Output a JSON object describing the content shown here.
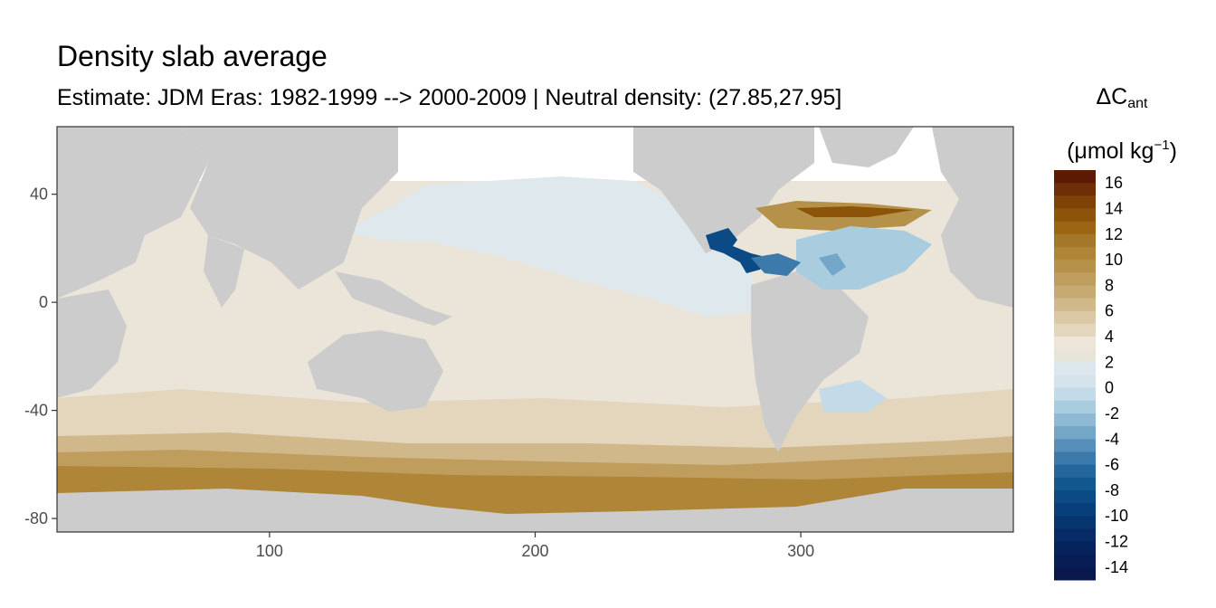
{
  "title": "Density slab average",
  "subtitle": "Estimate: JDM Eras: 1982-1999 --> 2000-2009 | Neutral density: (27.85,27.95]",
  "legend": {
    "title_main": "ΔC",
    "title_sub": "ant",
    "unit_open": "(μmol kg",
    "unit_sup": "−1",
    "unit_close": ")",
    "bins": [
      {
        "label": "16",
        "color": "#5c1a05"
      },
      {
        "label": "",
        "color": "#6e2e07"
      },
      {
        "label": "14",
        "color": "#7e4207"
      },
      {
        "label": "",
        "color": "#8c540b"
      },
      {
        "label": "12",
        "color": "#9a6614"
      },
      {
        "label": "",
        "color": "#a5772a"
      },
      {
        "label": "10",
        "color": "#af8537"
      },
      {
        "label": "",
        "color": "#b69149"
      },
      {
        "label": "8",
        "color": "#bf9d5c"
      },
      {
        "label": "",
        "color": "#c6aa71"
      },
      {
        "label": "6",
        "color": "#d0b88a"
      },
      {
        "label": "",
        "color": "#dbc8a5"
      },
      {
        "label": "4",
        "color": "#e3d6bd"
      },
      {
        "label": "",
        "color": "#ece5d8"
      },
      {
        "label": "2",
        "color": "#e7e4da"
      },
      {
        "label": "",
        "color": "#dde8ee"
      },
      {
        "label": "0",
        "color": "#d4e3ec"
      },
      {
        "label": "",
        "color": "#c3dbe8"
      },
      {
        "label": "-2",
        "color": "#aaccdf"
      },
      {
        "label": "",
        "color": "#8fb9d4"
      },
      {
        "label": "-4",
        "color": "#74a6c8"
      },
      {
        "label": "",
        "color": "#5690ba"
      },
      {
        "label": "-6",
        "color": "#3b7aab"
      },
      {
        "label": "",
        "color": "#24679d"
      },
      {
        "label": "-8",
        "color": "#13578f"
      },
      {
        "label": "",
        "color": "#0b4a84"
      },
      {
        "label": "-10",
        "color": "#073f7a"
      },
      {
        "label": "",
        "color": "#063570"
      },
      {
        "label": "-12",
        "color": "#062b66"
      },
      {
        "label": "",
        "color": "#06235d"
      },
      {
        "label": "-14",
        "color": "#071d55"
      },
      {
        "label": "",
        "color": "#08174c"
      }
    ]
  },
  "map": {
    "xlim": [
      20,
      380
    ],
    "ylim": [
      -85,
      65
    ],
    "x_ticks": [
      100,
      200,
      300
    ],
    "y_ticks": [
      40,
      0,
      -40,
      -80
    ],
    "land_color": "#cccccc",
    "nodata_color": "#ffffff"
  }
}
